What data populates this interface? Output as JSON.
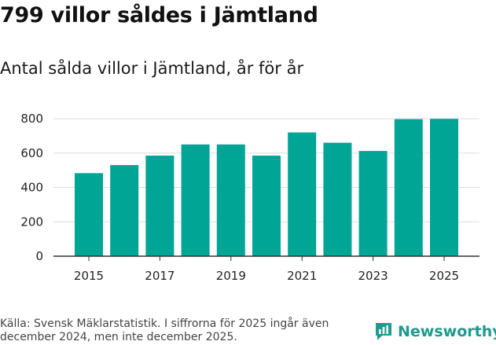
{
  "title": "799 villor såldes i Jämtland",
  "subtitle": "Antal sålda villor i Jämtland, år för år",
  "source": "Källa: Svensk Mäklarstatistik. I siffrorna för 2025 ingår även december 2024, men inte december 2025.",
  "brand": {
    "name": "Newsworthy",
    "icon": "bar-chart-logo-icon"
  },
  "colors": {
    "bar": "#00a596",
    "grid": "#dddddd",
    "axis": "#333333",
    "brand": "#1f9a8e"
  },
  "chart_data": {
    "type": "bar",
    "title": "Antal sålda villor i Jämtland, år för år",
    "xlabel": "",
    "ylabel": "",
    "categories": [
      "2015",
      "2016",
      "2017",
      "2018",
      "2019",
      "2020",
      "2021",
      "2022",
      "2023",
      "2024",
      "2025"
    ],
    "values": [
      483,
      530,
      585,
      650,
      650,
      585,
      720,
      660,
      612,
      797,
      799
    ],
    "ylim": [
      0,
      800
    ],
    "yticks": [
      "0",
      "200",
      "400",
      "600",
      "800"
    ],
    "xticks": [
      "2015",
      "2017",
      "2019",
      "2021",
      "2023",
      "2025"
    ],
    "grid": true
  }
}
